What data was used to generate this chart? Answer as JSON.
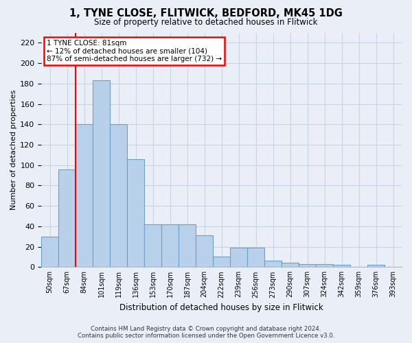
{
  "title": "1, TYNE CLOSE, FLITWICK, BEDFORD, MK45 1DG",
  "subtitle": "Size of property relative to detached houses in Flitwick",
  "xlabel": "Distribution of detached houses by size in Flitwick",
  "ylabel": "Number of detached properties",
  "footnote1": "Contains HM Land Registry data © Crown copyright and database right 2024.",
  "footnote2": "Contains public sector information licensed under the Open Government Licence v3.0.",
  "bins": [
    "50sqm",
    "67sqm",
    "84sqm",
    "101sqm",
    "119sqm",
    "136sqm",
    "153sqm",
    "170sqm",
    "187sqm",
    "204sqm",
    "222sqm",
    "239sqm",
    "256sqm",
    "273sqm",
    "290sqm",
    "307sqm",
    "324sqm",
    "342sqm",
    "359sqm",
    "376sqm",
    "393sqm"
  ],
  "values": [
    30,
    96,
    140,
    183,
    140,
    106,
    42,
    42,
    42,
    31,
    10,
    19,
    19,
    6,
    4,
    3,
    3,
    2,
    0,
    2,
    0
  ],
  "bar_color": "#b8d0ea",
  "bar_edge_color": "#6b9ec8",
  "grid_color": "#c8d4e4",
  "background_color": "#eaeff7",
  "annotation_line1": "1 TYNE CLOSE: 81sqm",
  "annotation_line2": "← 12% of detached houses are smaller (104)",
  "annotation_line3": "87% of semi-detached houses are larger (732) →",
  "annotation_box_facecolor": "white",
  "annotation_box_edgecolor": "red",
  "marker_line_color": "red",
  "marker_bar_index": 2,
  "ylim": [
    0,
    230
  ],
  "yticks": [
    0,
    20,
    40,
    60,
    80,
    100,
    120,
    140,
    160,
    180,
    200,
    220
  ]
}
